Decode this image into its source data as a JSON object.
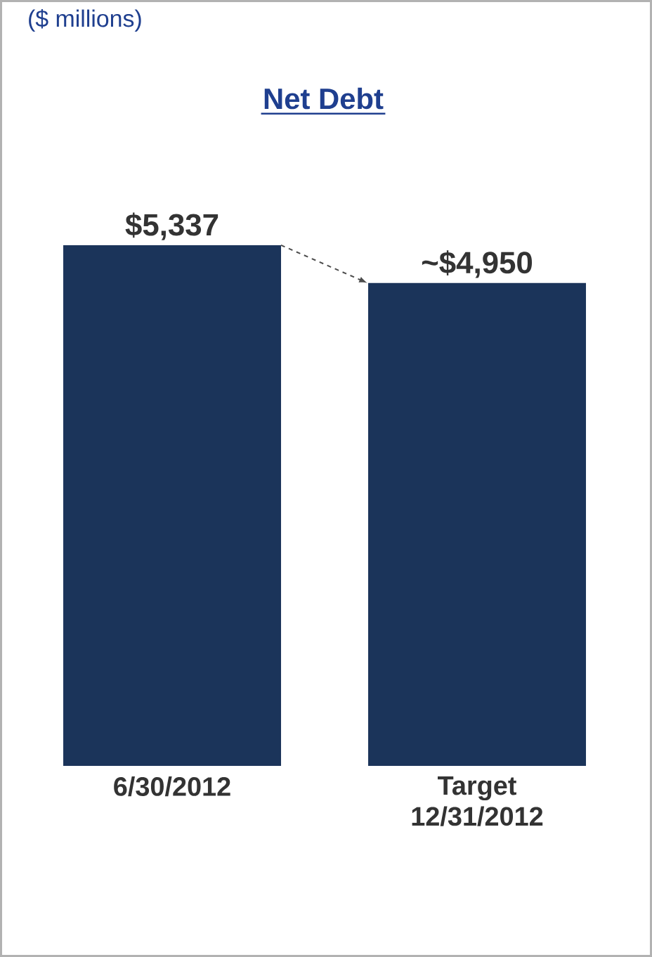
{
  "chart_data": {
    "type": "bar",
    "title": "Net Debt",
    "annotations": [
      "($ millions)"
    ],
    "categories": [
      "6/30/2012",
      "Target 12/31/2012"
    ],
    "values": [
      5337,
      4950
    ],
    "value_labels": [
      "$5,337",
      "~$4,950"
    ],
    "color": "#1b345a"
  }
}
